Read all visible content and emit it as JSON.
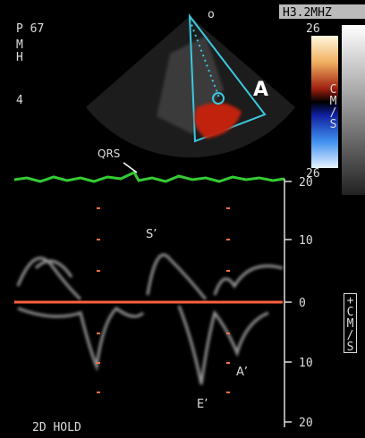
{
  "header": {
    "frequency": "H3.2MHZ",
    "left_labels": [
      "P 67",
      "M",
      "H",
      "4"
    ]
  },
  "sector": {
    "label": "A"
  },
  "color_bar": {
    "top": "26",
    "unit": "CM/S",
    "bottom": "26"
  },
  "ecg": {
    "label": "QRS"
  },
  "doppler": {
    "scale_labels": [
      "20",
      "10",
      "0",
      "10",
      "20"
    ],
    "unit": "+CM/S",
    "labels": {
      "s": "S’",
      "a": "A’",
      "e": "E’"
    }
  },
  "footer": {
    "status": "2D HOLD"
  }
}
